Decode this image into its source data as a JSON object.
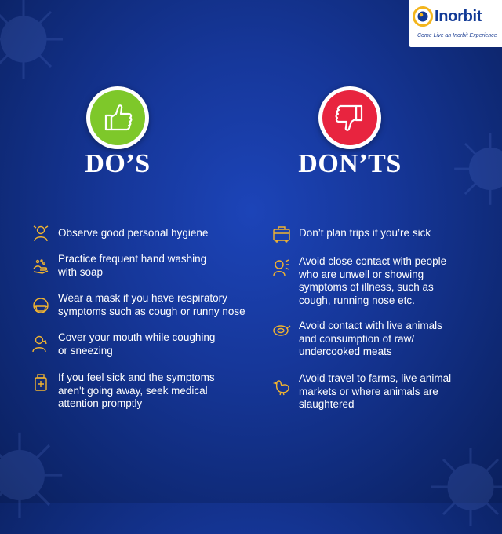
{
  "brand": {
    "name": "Inorbit",
    "tagline": "Come Live an Inorbit Experience"
  },
  "dos": {
    "heading": "DO’S",
    "badge_color": "#7ec82a",
    "items": [
      {
        "icon": "person-washing-face-icon",
        "text": "Observe good personal hygiene"
      },
      {
        "icon": "hand-washing-icon",
        "text": "Practice frequent hand washing\nwith soap"
      },
      {
        "icon": "face-mask-icon",
        "text": "Wear a mask if you have respiratory\nsymptoms such as cough or runny nose"
      },
      {
        "icon": "cover-mouth-icon",
        "text": "Cover your mouth while coughing\nor sneezing"
      },
      {
        "icon": "medicine-bottle-icon",
        "text": "If you feel sick and the symptoms\naren't going away, seek medical\nattention promptly"
      }
    ]
  },
  "donts": {
    "heading": "DON’TS",
    "badge_color": "#e8243f",
    "items": [
      {
        "icon": "luggage-icon",
        "text": "Don’t plan trips if you’re sick"
      },
      {
        "icon": "sick-person-icon",
        "text": "Avoid close contact with people\nwho are unwell or showing\nsymptoms of illness, such as\ncough, running nose etc."
      },
      {
        "icon": "raw-meat-icon",
        "text": "Avoid contact with live animals\nand consumption of raw/\nundercooked meats"
      },
      {
        "icon": "chicken-icon",
        "text": "Avoid travel to farms, live animal\nmarkets or where animals are\nslaughtered"
      }
    ]
  },
  "colors": {
    "background": "#16379a",
    "icon_outline": "#f2b430",
    "text": "#ffffff"
  }
}
